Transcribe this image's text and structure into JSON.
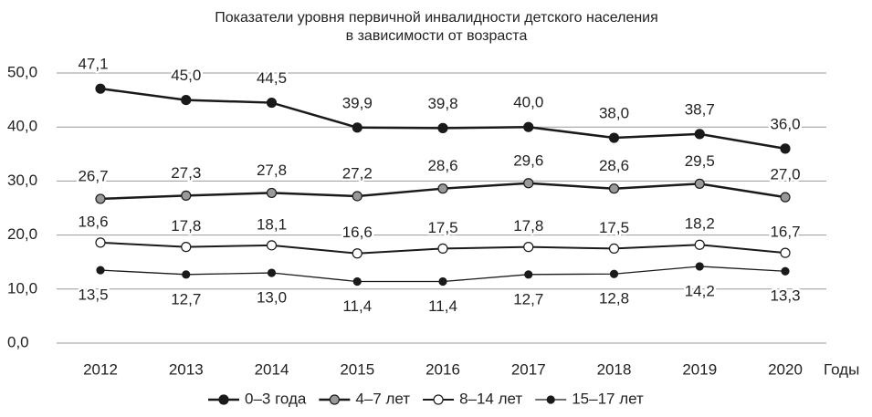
{
  "chart_data": {
    "type": "line",
    "title": [
      "Показатели уровня первичной инвалидности детского населения",
      "в зависимости от возраста"
    ],
    "x_label": "Годы",
    "categories": [
      "2012",
      "2013",
      "2014",
      "2015",
      "2016",
      "2017",
      "2018",
      "2019",
      "2020"
    ],
    "ylim": [
      0,
      50
    ],
    "yticks": [
      {
        "value": 0,
        "label": "0,0"
      },
      {
        "value": 10,
        "label": "10,0"
      },
      {
        "value": 20,
        "label": "20,0"
      },
      {
        "value": 30,
        "label": "30,0"
      },
      {
        "value": 40,
        "label": "40,0"
      },
      {
        "value": 50,
        "label": "50,0"
      }
    ],
    "grid": true,
    "legend": "bottom",
    "series": [
      {
        "name": "0–3 года",
        "color": "#1a1a1a",
        "marker_fill": "#1a1a1a",
        "line_width": 2.5,
        "values": [
          47.1,
          45.0,
          44.5,
          39.9,
          39.8,
          40.0,
          38.0,
          38.7,
          36.0
        ],
        "value_labels": [
          "47,1",
          "45,0",
          "44,5",
          "39,9",
          "39,8",
          "40,0",
          "38,0",
          "38,7",
          "36,0"
        ]
      },
      {
        "name": "4–7 лет",
        "color": "#1a1a1a",
        "marker_fill": "#999999",
        "line_width": 2.5,
        "values": [
          26.7,
          27.3,
          27.8,
          27.2,
          28.6,
          29.6,
          28.6,
          29.5,
          27.0
        ],
        "value_labels": [
          "26,7",
          "27,3",
          "27,8",
          "27,2",
          "28,6",
          "29,6",
          "28,6",
          "29,5",
          "27,0"
        ]
      },
      {
        "name": "8–14 лет",
        "color": "#1a1a1a",
        "marker_fill": "#ffffff",
        "line_width": 2,
        "values": [
          18.6,
          17.8,
          18.1,
          16.6,
          17.5,
          17.8,
          17.5,
          18.2,
          16.7
        ],
        "value_labels": [
          "18,6",
          "17,8",
          "18,1",
          "16,6",
          "17,5",
          "17,8",
          "17,5",
          "18,2",
          "16,7"
        ]
      },
      {
        "name": "15–17 лет",
        "color": "#1a1a1a",
        "marker_fill": "#1a1a1a",
        "line_width": 1.3,
        "values": [
          13.5,
          12.7,
          13.0,
          11.4,
          11.4,
          12.7,
          12.8,
          14.2,
          13.3
        ],
        "value_labels": [
          "13,5",
          "12,7",
          "13,0",
          "11,4",
          "11,4",
          "12,7",
          "12,8",
          "14,2",
          "13,3"
        ]
      }
    ]
  }
}
